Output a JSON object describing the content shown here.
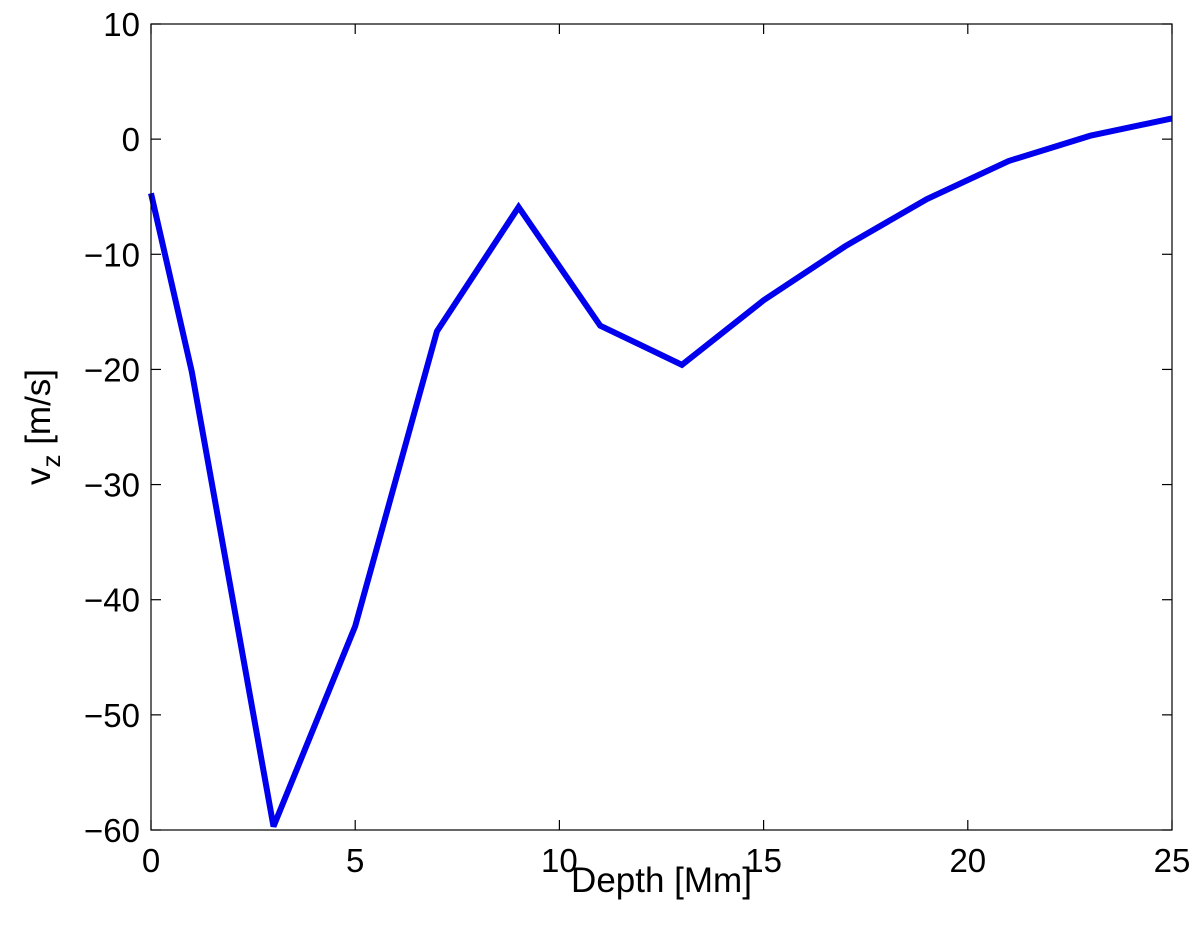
{
  "chart_data": {
    "type": "line",
    "title": "",
    "xlabel": "Depth [Mm]",
    "ylabel": {
      "main": "v",
      "subscript": "z",
      "suffix": " [m/s]"
    },
    "xlim": [
      0,
      25
    ],
    "ylim": [
      -60,
      10
    ],
    "xticks": [
      0,
      5,
      10,
      15,
      20,
      25
    ],
    "yticks": [
      -60,
      -50,
      -40,
      -30,
      -20,
      -10,
      0,
      10
    ],
    "xtick_labels": [
      "0",
      "5",
      "10",
      "15",
      "20",
      "25"
    ],
    "ytick_labels": [
      "−60",
      "−50",
      "−40",
      "−30",
      "−20",
      "−10",
      "0",
      "10"
    ],
    "grid": false,
    "series": [
      {
        "color": "#0000ee",
        "x": [
          0,
          1,
          3,
          5,
          7,
          9,
          11,
          13,
          15,
          17,
          19,
          21,
          23,
          25
        ],
        "y": [
          -4.7,
          -20.2,
          -59.7,
          -42.3,
          -16.7,
          -5.9,
          -16.2,
          -19.6,
          -14.0,
          -9.3,
          -5.2,
          -1.9,
          0.3,
          1.8
        ]
      }
    ]
  }
}
